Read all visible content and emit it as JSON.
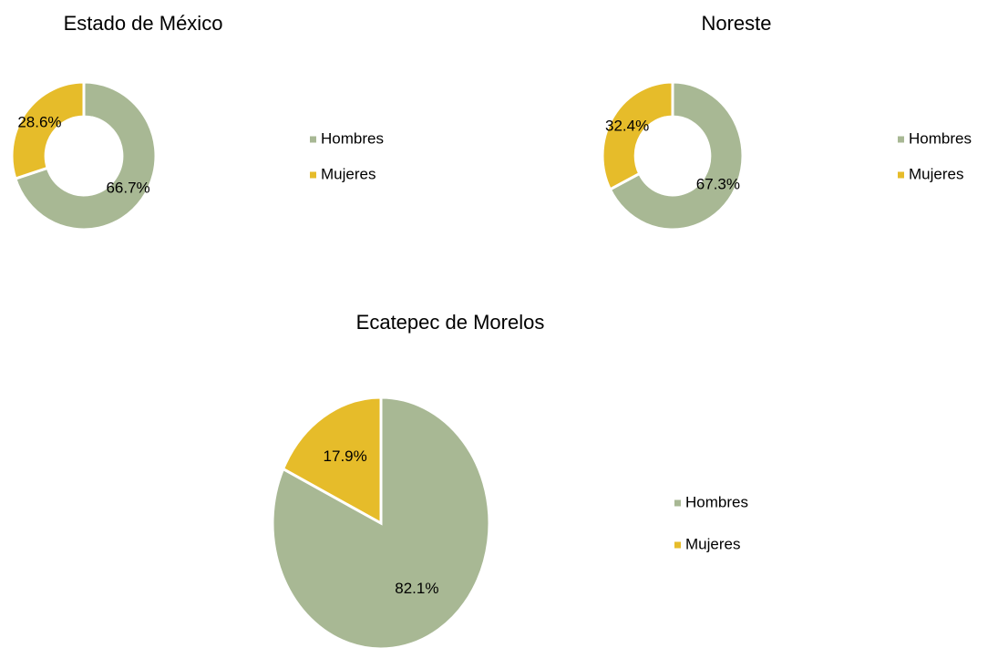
{
  "chart_data": [
    {
      "type": "donut",
      "title": "Estado de México",
      "categories": [
        "Hombres",
        "Mujeres"
      ],
      "values": [
        66.7,
        28.6
      ],
      "value_labels": [
        "66.7%",
        "28.6%"
      ],
      "colors": [
        "#a8b894",
        "#e6bc2a"
      ]
    },
    {
      "type": "donut",
      "title": "Noreste",
      "categories": [
        "Hombres",
        "Mujeres"
      ],
      "values": [
        67.3,
        32.4
      ],
      "value_labels": [
        "67.3%",
        "32.4%"
      ],
      "colors": [
        "#a8b894",
        "#e6bc2a"
      ]
    },
    {
      "type": "pie",
      "title": "Ecatepec de Morelos",
      "categories": [
        "Hombres",
        "Mujeres"
      ],
      "values": [
        82.1,
        17.9
      ],
      "value_labels": [
        "82.1%",
        "17.9%"
      ],
      "colors": [
        "#a8b894",
        "#e6bc2a"
      ]
    }
  ]
}
